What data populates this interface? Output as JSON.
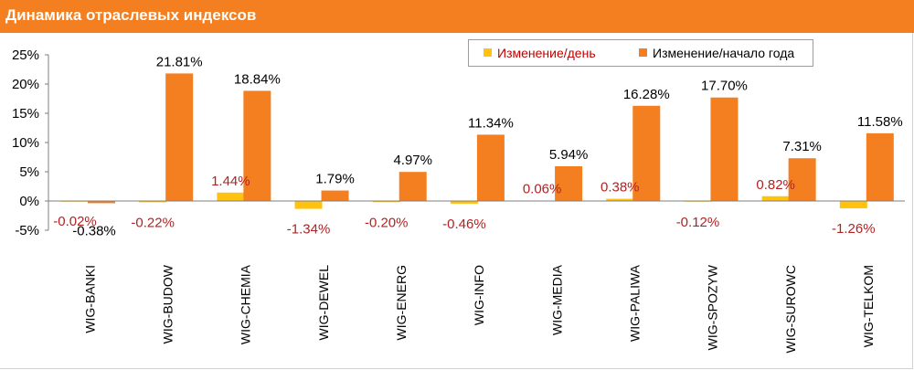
{
  "title": "Динамика отраслевых индексов",
  "colors": {
    "header": "#f47f20",
    "series_day": "#ffc20e",
    "series_ytd": "#f47f20",
    "day_label": "#b22222",
    "ytd_label": "#000000"
  },
  "chart_data": {
    "type": "bar",
    "title": "Динамика отраслевых индексов",
    "categories": [
      "WIG-BANKI",
      "WIG-BUDOW",
      "WIG-CHEMIA",
      "WIG-DEWEL",
      "WIG-ENERG",
      "WIG-INFO",
      "WIG-MEDIA",
      "WIG-PALIWA",
      "WIG-SPOZYW",
      "WIG-SUROWC",
      "WIG-TELKOM"
    ],
    "series": [
      {
        "name": "Изменение/день",
        "values": [
          -0.02,
          -0.22,
          1.44,
          -1.34,
          -0.2,
          -0.46,
          0.06,
          0.38,
          -0.12,
          0.82,
          -1.26
        ],
        "labels": [
          "-0.02%",
          "-0.22%",
          "1.44%",
          "-1.34%",
          "-0.20%",
          "-0.46%",
          "0.06%",
          "0.38%",
          "-0.12%",
          "0.82%",
          "-1.26%"
        ]
      },
      {
        "name": "Изменение/начало года",
        "values": [
          -0.38,
          21.81,
          18.84,
          1.79,
          4.97,
          11.34,
          5.94,
          16.28,
          17.7,
          7.31,
          11.58
        ],
        "labels": [
          "-0.38%",
          "21.81%",
          "18.84%",
          "1.79%",
          "4.97%",
          "11.34%",
          "5.94%",
          "16.28%",
          "17.70%",
          "7.31%",
          "11.58%"
        ]
      }
    ],
    "yticks": [
      "-5%",
      "0%",
      "5%",
      "10%",
      "15%",
      "20%",
      "25%"
    ],
    "ylim": [
      -5,
      25
    ],
    "legend_position": "top-right",
    "grid": false
  }
}
